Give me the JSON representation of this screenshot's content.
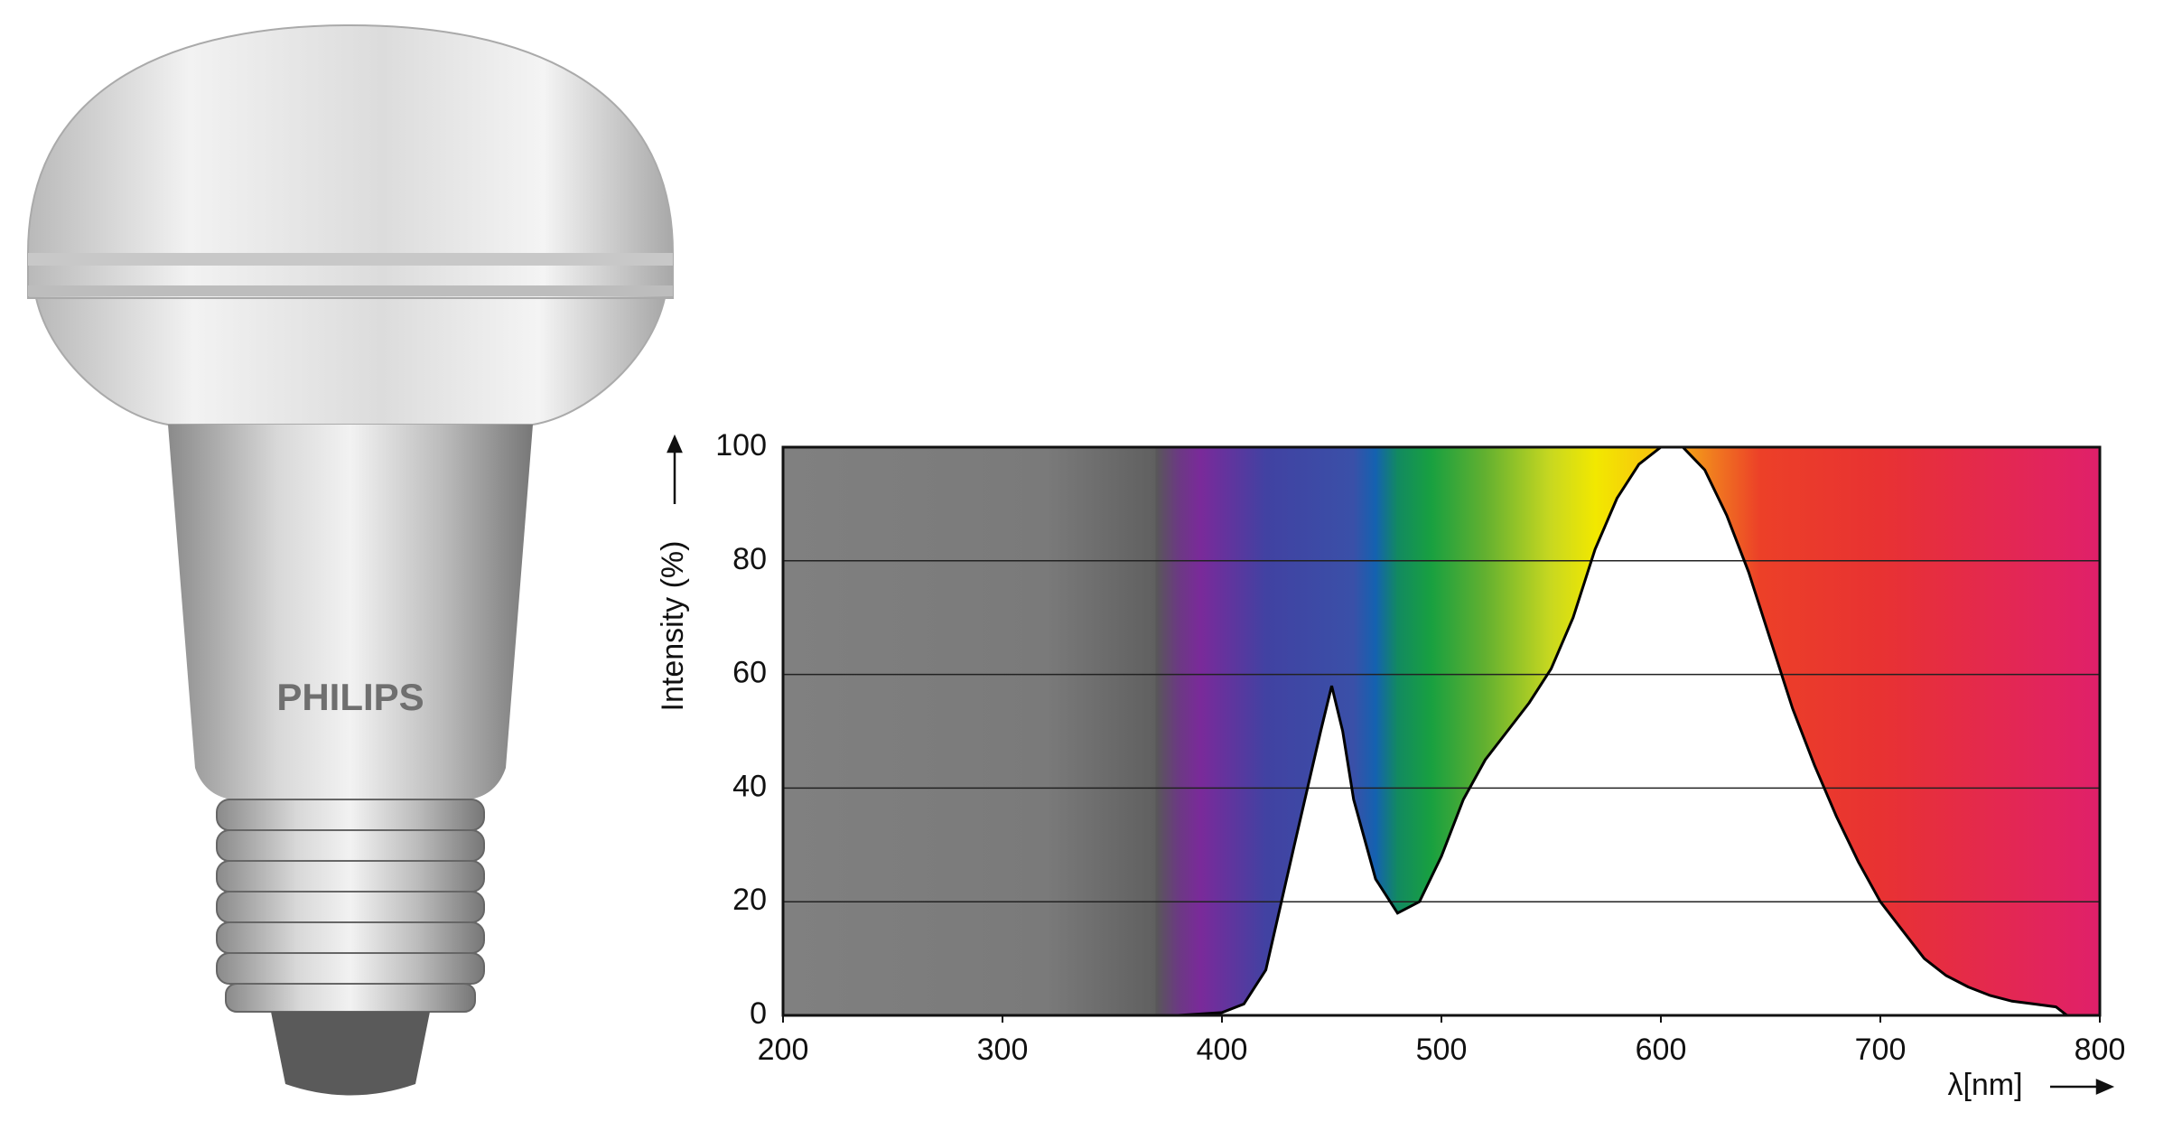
{
  "product": {
    "brand": "PHILIPS"
  },
  "chart_data": {
    "type": "area",
    "y_label": "Intensity (%)",
    "x_label": "λ[nm]",
    "x": [
      200,
      380,
      400,
      410,
      420,
      433,
      445,
      450,
      455,
      460,
      470,
      480,
      490,
      500,
      510,
      520,
      530,
      540,
      550,
      560,
      570,
      580,
      590,
      600,
      607,
      610,
      620,
      630,
      640,
      650,
      660,
      670,
      680,
      690,
      700,
      710,
      720,
      730,
      740,
      750,
      760,
      770,
      780,
      785
    ],
    "values": [
      0,
      0,
      0.5,
      2,
      8,
      30,
      50,
      58,
      50,
      38,
      24,
      18,
      20,
      28,
      38,
      45,
      50,
      55,
      61,
      70,
      82,
      91,
      97,
      100,
      100,
      100,
      96,
      88,
      78,
      66,
      54,
      44,
      35,
      27,
      20,
      15,
      10,
      7,
      5,
      3.5,
      2.5,
      2,
      1.5,
      0
    ],
    "color": "#000000",
    "fill": "#ffffff",
    "xlim": [
      200,
      800
    ],
    "ylim": [
      0,
      100
    ],
    "xticks": [
      200,
      300,
      400,
      500,
      600,
      700,
      800
    ],
    "yticks": [
      0,
      20,
      40,
      60,
      80,
      100
    ],
    "grid": true
  }
}
